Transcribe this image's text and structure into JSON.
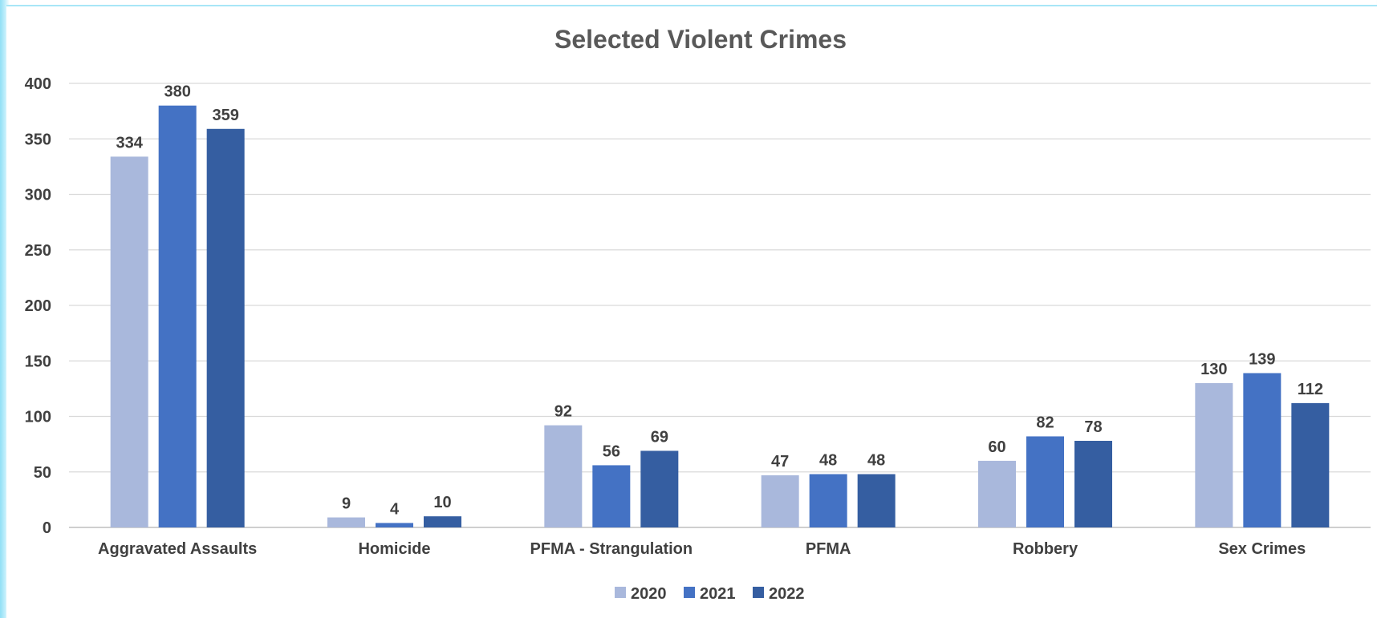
{
  "chart_data": {
    "type": "bar",
    "title": "Selected Violent Crimes",
    "xlabel": "",
    "ylabel": "",
    "ylim": [
      0,
      400
    ],
    "yticks": [
      0,
      50,
      100,
      150,
      200,
      250,
      300,
      350,
      400
    ],
    "grid": true,
    "legend_position": "bottom",
    "categories": [
      "Aggravated Assaults",
      "Homicide",
      "PFMA - Strangulation",
      "PFMA",
      "Robbery",
      "Sex Crimes"
    ],
    "series": [
      {
        "name": "2020",
        "color": "#a9b8dc",
        "values": [
          334,
          9,
          92,
          47,
          60,
          130
        ]
      },
      {
        "name": "2021",
        "color": "#4472c4",
        "values": [
          380,
          4,
          56,
          48,
          82,
          139
        ]
      },
      {
        "name": "2022",
        "color": "#355ea1",
        "values": [
          359,
          10,
          69,
          48,
          78,
          112
        ]
      }
    ]
  }
}
